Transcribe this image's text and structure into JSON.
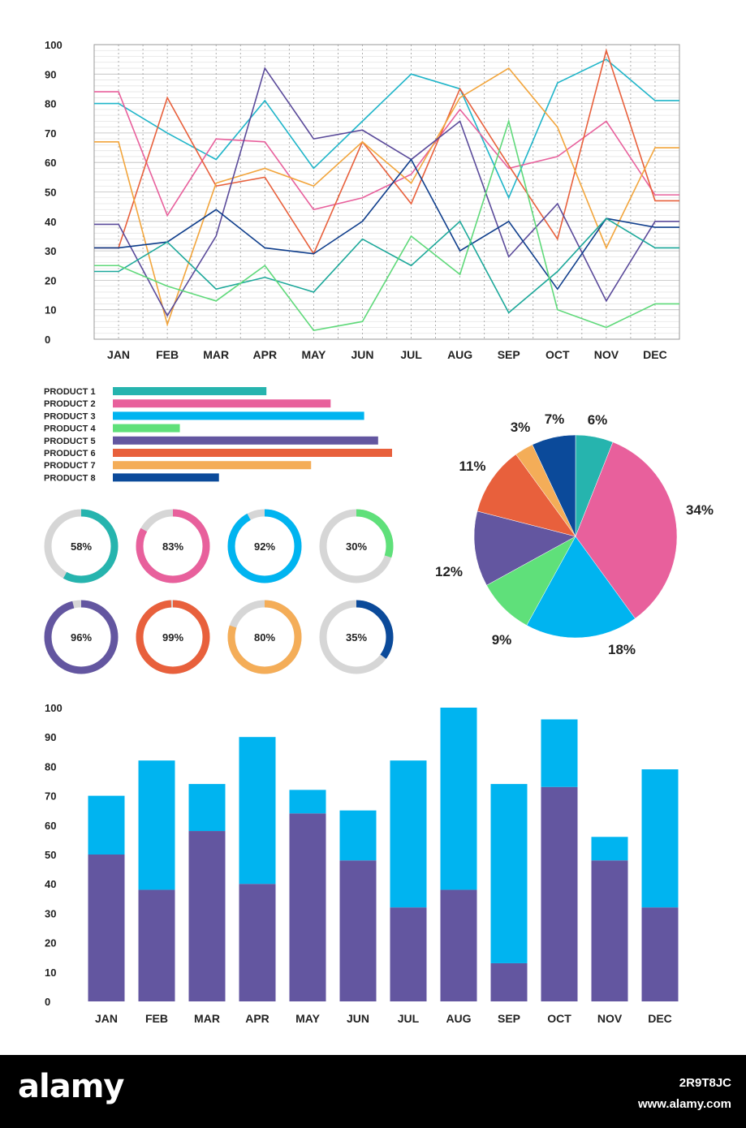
{
  "months": [
    "JAN",
    "FEB",
    "MAR",
    "APR",
    "MAY",
    "JUN",
    "JUL",
    "AUG",
    "SEP",
    "OCT",
    "NOV",
    "DEC"
  ],
  "chart_data": [
    {
      "type": "line",
      "categories": [
        "JAN",
        "FEB",
        "MAR",
        "APR",
        "MAY",
        "JUN",
        "JUL",
        "AUG",
        "SEP",
        "OCT",
        "NOV",
        "DEC"
      ],
      "ylim": [
        0,
        100
      ],
      "yticks": [
        0,
        10,
        20,
        30,
        40,
        50,
        60,
        70,
        80,
        90,
        100
      ],
      "grid": true,
      "series": [
        {
          "color": "#1fb5c9",
          "values": [
            80,
            70,
            61,
            81,
            58,
            74,
            90,
            85,
            48,
            87,
            95,
            81
          ]
        },
        {
          "color": "#e8609c",
          "values": [
            84,
            42,
            68,
            67,
            44,
            48,
            56,
            78,
            58,
            62,
            74,
            49
          ]
        },
        {
          "color": "#e8603c",
          "values": [
            31,
            82,
            52,
            55,
            29,
            67,
            46,
            85,
            59,
            34,
            98,
            47
          ]
        },
        {
          "color": "#f2a53c",
          "values": [
            67,
            5,
            53,
            58,
            52,
            67,
            53,
            82,
            92,
            72,
            31,
            65
          ]
        },
        {
          "color": "#5a4a9a",
          "values": [
            39,
            8,
            35,
            92,
            68,
            71,
            61,
            74,
            28,
            46,
            13,
            40
          ]
        },
        {
          "color": "#0f3e8c",
          "values": [
            31,
            33,
            44,
            31,
            29,
            40,
            61,
            30,
            40,
            17,
            41,
            38
          ]
        },
        {
          "color": "#1ca89a",
          "values": [
            23,
            33,
            17,
            21,
            16,
            34,
            25,
            40,
            9,
            23,
            41,
            31
          ]
        },
        {
          "color": "#5fd97a",
          "values": [
            25,
            18,
            13,
            25,
            3,
            6,
            35,
            22,
            74,
            10,
            4,
            12
          ]
        }
      ]
    },
    {
      "type": "bar",
      "orientation": "horizontal",
      "categories": [
        "PRODUCT 1",
        "PRODUCT 2",
        "PRODUCT 3",
        "PRODUCT 4",
        "PRODUCT 5",
        "PRODUCT 6",
        "PRODUCT 7",
        "PRODUCT 8"
      ],
      "values": [
        55,
        78,
        90,
        24,
        95,
        100,
        71,
        38
      ],
      "colors": [
        "#26b4ae",
        "#e8609c",
        "#00b4f0",
        "#5fe07a",
        "#6356a0",
        "#e8603c",
        "#f4ad58",
        "#0b4a9a"
      ]
    },
    {
      "type": "pie",
      "labels": [
        "6%",
        "34%",
        "18%",
        "9%",
        "12%",
        "11%",
        "3%",
        "7%"
      ],
      "values": [
        6,
        34,
        18,
        9,
        12,
        11,
        3,
        7
      ],
      "colors": [
        "#26b4ae",
        "#e8609c",
        "#00b4f0",
        "#5fe07a",
        "#6356a0",
        "#e8603c",
        "#f4ad58",
        "#0b4a9a"
      ]
    },
    {
      "type": "bar",
      "stacked": true,
      "categories": [
        "JAN",
        "FEB",
        "MAR",
        "APR",
        "MAY",
        "JUN",
        "JUL",
        "AUG",
        "SEP",
        "OCT",
        "NOV",
        "DEC"
      ],
      "ylim": [
        0,
        100
      ],
      "yticks": [
        0,
        10,
        20,
        30,
        40,
        50,
        60,
        70,
        80,
        90,
        100
      ],
      "series": [
        {
          "color": "#6356a0",
          "values": [
            50,
            38,
            58,
            40,
            64,
            48,
            32,
            38,
            13,
            73,
            48,
            32
          ]
        },
        {
          "color": "#00b4f0",
          "values": [
            20,
            44,
            16,
            50,
            8,
            17,
            50,
            62,
            61,
            23,
            8,
            47
          ]
        }
      ]
    }
  ],
  "donuts": [
    {
      "label": "58%",
      "value": 58,
      "color": "#26b4ae"
    },
    {
      "label": "83%",
      "value": 83,
      "color": "#e8609c"
    },
    {
      "label": "92%",
      "value": 92,
      "color": "#00b4f0"
    },
    {
      "label": "30%",
      "value": 30,
      "color": "#5fe07a"
    },
    {
      "label": "96%",
      "value": 96,
      "color": "#6356a0"
    },
    {
      "label": "99%",
      "value": 99,
      "color": "#e8603c"
    },
    {
      "label": "80%",
      "value": 80,
      "color": "#f4ad58"
    },
    {
      "label": "35%",
      "value": 35,
      "color": "#0b4a9a"
    }
  ],
  "footer": {
    "brand": "alamy",
    "image_id": "2R9T8JC",
    "site": "www.alamy.com"
  }
}
